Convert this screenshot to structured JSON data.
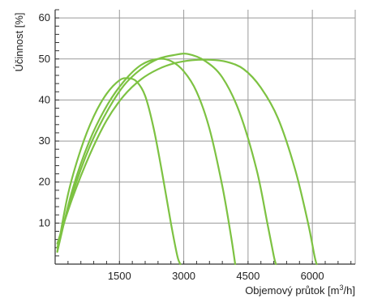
{
  "chart_data": {
    "type": "line",
    "title": "",
    "xlabel": "Objemový průtok [m",
    "xlabel_sup": "3",
    "xlabel_tail": "/h]",
    "ylabel": "Účinnost [%]",
    "xlim": [
      0,
      7000
    ],
    "ylim": [
      0,
      62
    ],
    "x_ticks": [
      1500,
      3000,
      4500,
      6000
    ],
    "y_ticks": [
      10,
      20,
      30,
      40,
      50,
      60
    ],
    "x_tick_labels": [
      "1500",
      "3000",
      "4500",
      "6000"
    ],
    "y_tick_labels": [
      "10",
      "20",
      "30",
      "40",
      "50",
      "60"
    ],
    "grid": true,
    "colors": {
      "series": "#7dc242",
      "grid": "#9a9a9a",
      "axis": "#333333",
      "text": "#222222"
    },
    "series": [
      {
        "points": [
          [
            50,
            3
          ],
          [
            300,
            17
          ],
          [
            600,
            28
          ],
          [
            900,
            36
          ],
          [
            1200,
            41.5
          ],
          [
            1500,
            44.8
          ],
          [
            1700,
            45.3
          ],
          [
            1900,
            44.5
          ],
          [
            2100,
            41
          ],
          [
            2300,
            33
          ],
          [
            2500,
            22
          ],
          [
            2700,
            10
          ],
          [
            2850,
            2
          ],
          [
            2920,
            0
          ]
        ]
      },
      {
        "points": [
          [
            50,
            3
          ],
          [
            400,
            18
          ],
          [
            800,
            30
          ],
          [
            1200,
            38.5
          ],
          [
            1600,
            44.5
          ],
          [
            2000,
            48.5
          ],
          [
            2400,
            50
          ],
          [
            2700,
            49.5
          ],
          [
            3000,
            47
          ],
          [
            3300,
            42
          ],
          [
            3600,
            33
          ],
          [
            3900,
            19
          ],
          [
            4100,
            7
          ],
          [
            4200,
            0
          ]
        ]
      },
      {
        "points": [
          [
            50,
            4
          ],
          [
            400,
            17
          ],
          [
            800,
            28.5
          ],
          [
            1200,
            37
          ],
          [
            1600,
            43.5
          ],
          [
            2000,
            47.5
          ],
          [
            2400,
            50
          ],
          [
            2800,
            51
          ],
          [
            3100,
            51.2
          ],
          [
            3500,
            49.5
          ],
          [
            3900,
            45.5
          ],
          [
            4300,
            37
          ],
          [
            4700,
            23
          ],
          [
            4950,
            10
          ],
          [
            5100,
            2
          ],
          [
            5150,
            0
          ]
        ]
      },
      {
        "points": [
          [
            50,
            5
          ],
          [
            400,
            16
          ],
          [
            800,
            26.5
          ],
          [
            1200,
            35
          ],
          [
            1600,
            41
          ],
          [
            2000,
            45
          ],
          [
            2400,
            47.5
          ],
          [
            2800,
            49
          ],
          [
            3200,
            49.7
          ],
          [
            3600,
            49.8
          ],
          [
            4000,
            49.3
          ],
          [
            4400,
            47.5
          ],
          [
            4800,
            43
          ],
          [
            5200,
            35.5
          ],
          [
            5600,
            23
          ],
          [
            5900,
            10
          ],
          [
            6050,
            2
          ],
          [
            6100,
            0
          ]
        ]
      }
    ]
  }
}
